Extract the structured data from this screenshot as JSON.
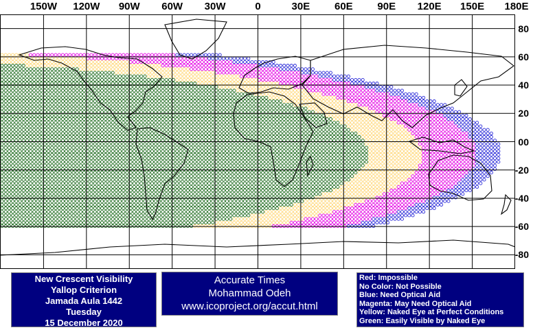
{
  "map": {
    "lon_labels": [
      "150W",
      "120W",
      "90W",
      "60W",
      "30W",
      "0",
      "30E",
      "60E",
      "90E",
      "120E",
      "150E",
      "180E"
    ],
    "lat_labels": [
      "80",
      "60",
      "40",
      "20",
      "00",
      "-20",
      "-40",
      "-60",
      "-80"
    ]
  },
  "colors": {
    "green": "#1d6b1d",
    "yellow": "#ffd778",
    "magenta": "#e400e4",
    "blue": "#2a2ad8",
    "panel_bg": "#000080",
    "grid": "#000000"
  },
  "title_panel": {
    "line1": "New Crescent Visibility",
    "line2": "Yallop Criterion",
    "line3": "Jamada Aula 1442",
    "line4": "Tuesday",
    "line5": "15 December 2020"
  },
  "credit_panel": {
    "line1": "Accurate Times",
    "line2": "Mohammad Odeh",
    "line3": "www.icoproject.org/accut.html"
  },
  "legend": {
    "red": "Red: Impossible",
    "none": "No Color: Not Possible",
    "blue": "Blue: Need Optical Aid",
    "magenta": "Magenta: May Need Optical Aid",
    "yellow": "Yellow: Naked Eye at Perfect Conditions",
    "green": "Green: Easily Visible by Naked Eye"
  }
}
